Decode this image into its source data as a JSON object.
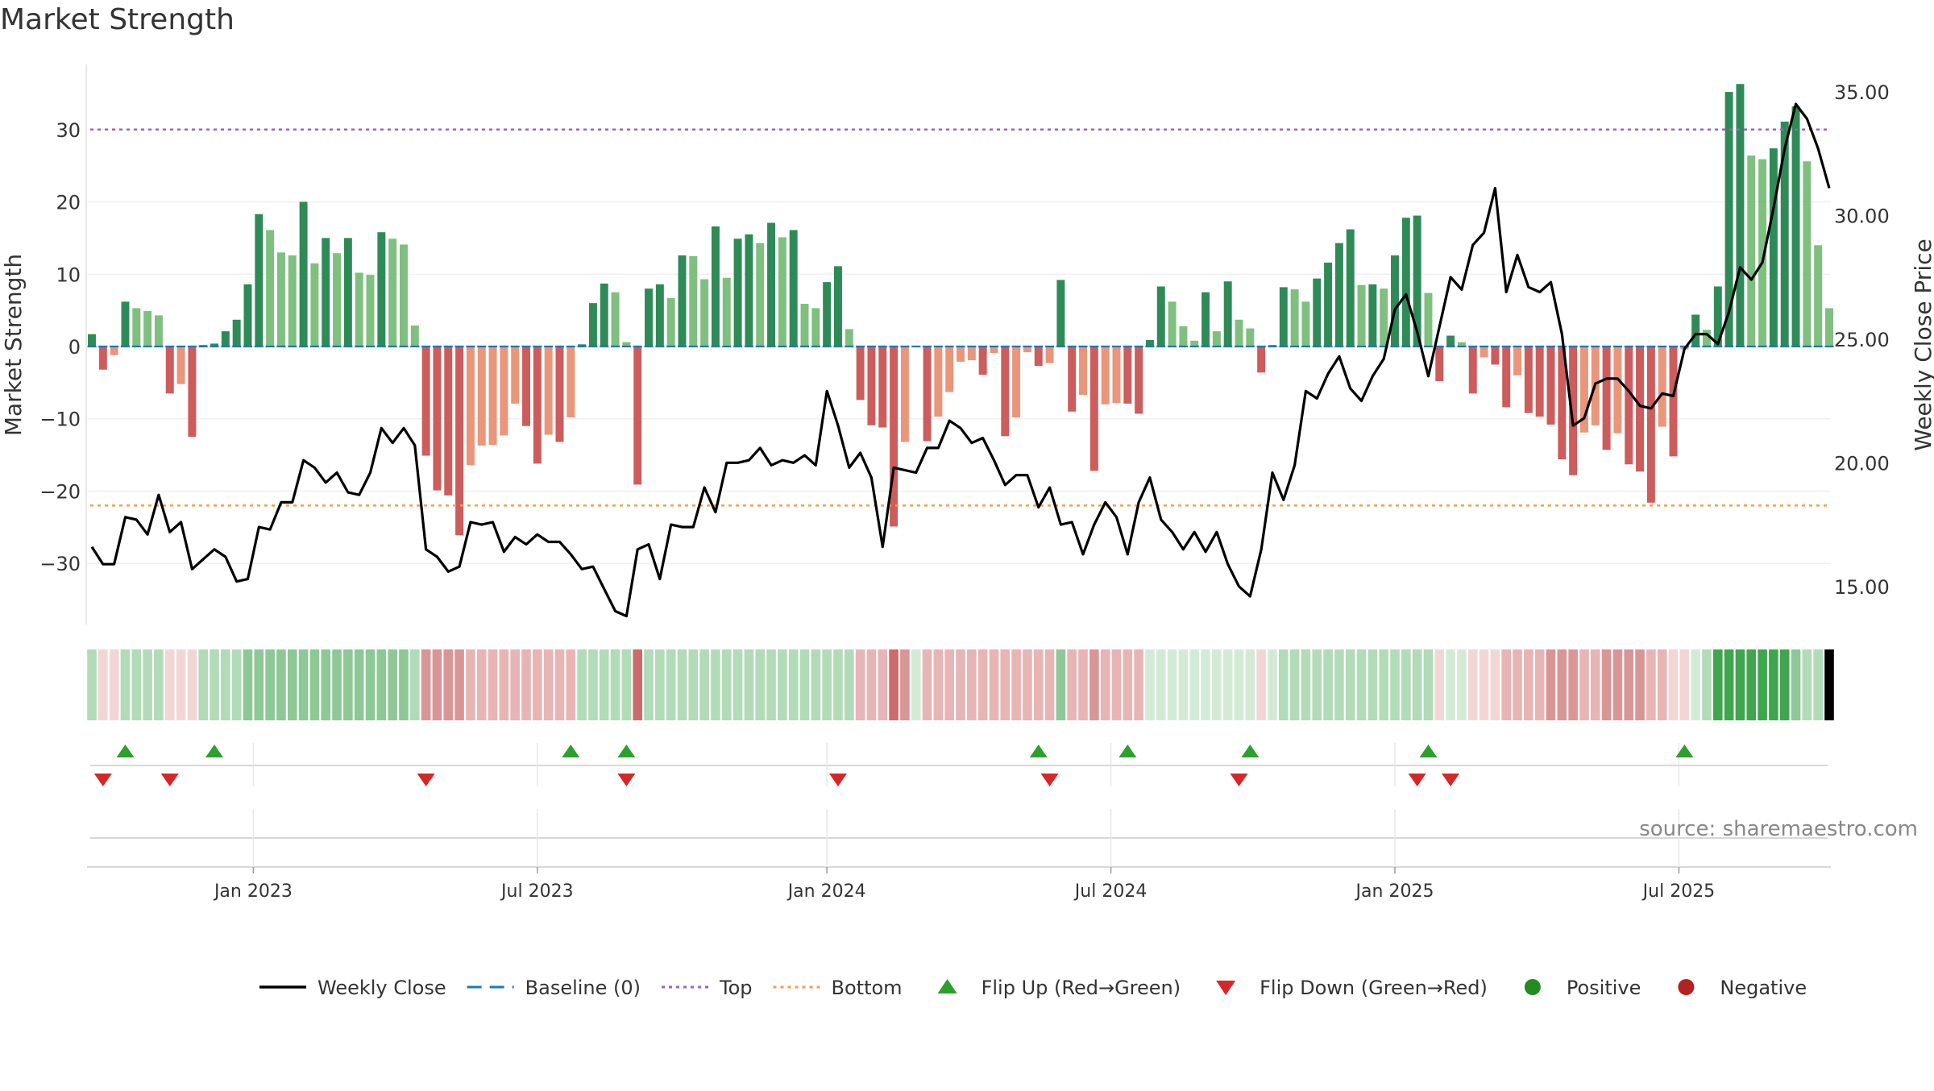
{
  "chart_data": {
    "type": "bar",
    "title": "Market Strength",
    "ylabel_left": "Market Strength",
    "ylabel_right": "Weekly Close Price",
    "source": "source: sharemaestro.com",
    "y_left_ticks": [
      30,
      20,
      10,
      0,
      -10,
      -20,
      -30
    ],
    "y_left_tick_labels": [
      "30",
      "20",
      "10",
      "0",
      "−10",
      "−20",
      "−30"
    ],
    "y_left_range": [
      -39,
      39
    ],
    "y_right_ticks": [
      35,
      30,
      25,
      20,
      15
    ],
    "y_right_tick_labels": [
      "35.00",
      "30.00",
      "25.00",
      "20.00",
      "15.00"
    ],
    "y_right_range": [
      13.3,
      36.1
    ],
    "x_tick_labels": [
      "Jan 2023",
      "Jul 2023",
      "Jan 2024",
      "Jul 2024",
      "Jan 2025",
      "Jul 2025"
    ],
    "x_tick_weeks": [
      14.5,
      40,
      66,
      91.5,
      117,
      142.5
    ],
    "thresholds": {
      "top": 30,
      "bottom": -22,
      "baseline": 0
    },
    "colors": {
      "strong_positive": "#2e8b57",
      "weak_positive": "#7fbf7f",
      "strong_negative": "#cd5c5c",
      "weak_negative": "#e9967a",
      "line": "#000000",
      "top_line": "#9467bd",
      "bottom_line": "#f0a050",
      "baseline": "#1f77b4",
      "flip_up": "#2ca02c",
      "flip_down": "#d62728",
      "positive_dot": "#228b22",
      "negative_dot": "#b22222"
    },
    "strength": [
      1.7,
      -3.2,
      -1.2,
      6.2,
      5.3,
      4.9,
      4.3,
      -6.5,
      -5.2,
      -12.5,
      0.2,
      0.4,
      2.1,
      3.7,
      8.6,
      18.3,
      16.1,
      13.0,
      12.6,
      20.0,
      11.5,
      15.0,
      12.9,
      15.0,
      10.2,
      9.9,
      15.8,
      14.9,
      14.1,
      2.9,
      -15.1,
      -19.9,
      -20.6,
      -26.1,
      -16.4,
      -13.7,
      -13.6,
      -12.3,
      -7.9,
      -11.0,
      -16.2,
      -12.2,
      -13.2,
      -9.8,
      0.3,
      6.0,
      8.7,
      7.5,
      0.6,
      -19.1,
      8.0,
      8.6,
      6.7,
      12.6,
      12.5,
      9.3,
      16.6,
      9.5,
      14.9,
      15.5,
      14.3,
      17.1,
      15.1,
      16.1,
      5.9,
      5.3,
      8.9,
      11.1,
      2.4,
      -7.4,
      -10.9,
      -11.2,
      -24.9,
      -13.2,
      0.1,
      -13.1,
      -9.7,
      -6.3,
      -2.1,
      -1.9,
      -3.9,
      -0.9,
      -12.4,
      -9.8,
      -0.8,
      -2.7,
      -2.3,
      9.2,
      -9.0,
      -6.7,
      -17.2,
      -8.0,
      -7.8,
      -7.9,
      -9.3,
      0.9,
      8.3,
      6.2,
      2.8,
      0.8,
      7.5,
      2.1,
      9.0,
      3.7,
      2.5,
      -3.6,
      0.2,
      8.2,
      7.9,
      6.2,
      9.4,
      11.6,
      14.3,
      16.2,
      8.5,
      8.6,
      8.0,
      12.6,
      17.8,
      18.1,
      7.4,
      -4.8,
      1.5,
      0.6,
      -6.5,
      -1.5,
      -2.5,
      -8.4,
      -4.0,
      -9.2,
      -9.7,
      -10.8,
      -15.6,
      -17.8,
      -11.9,
      -10.9,
      -14.3,
      -12.0,
      -16.3,
      -17.3,
      -21.6,
      -11.1,
      -15.2,
      -0.4,
      4.4,
      2.3,
      8.3,
      35.2,
      36.3,
      26.4,
      25.9,
      27.4,
      31.1,
      33.2,
      25.6,
      14.0,
      5.3
    ],
    "close": [
      16.6,
      15.9,
      15.9,
      17.8,
      17.7,
      17.1,
      18.7,
      17.2,
      17.6,
      15.7,
      16.1,
      16.5,
      16.2,
      15.2,
      15.3,
      17.4,
      17.3,
      18.4,
      18.4,
      20.1,
      19.8,
      19.2,
      19.6,
      18.8,
      18.7,
      19.6,
      21.4,
      20.8,
      21.4,
      20.7,
      16.5,
      16.2,
      15.6,
      15.8,
      17.6,
      17.5,
      17.6,
      16.4,
      17.0,
      16.7,
      17.1,
      16.8,
      16.8,
      16.3,
      15.7,
      15.8,
      14.9,
      14.0,
      13.8,
      16.5,
      16.7,
      15.3,
      17.5,
      17.4,
      17.4,
      19.0,
      18.0,
      20.0,
      20.0,
      20.1,
      20.6,
      19.9,
      20.1,
      20.0,
      20.3,
      19.9,
      22.9,
      21.5,
      19.8,
      20.4,
      19.4,
      16.6,
      19.8,
      19.7,
      19.6,
      20.6,
      20.6,
      21.7,
      21.4,
      20.8,
      21.0,
      20.1,
      19.1,
      19.5,
      19.5,
      18.2,
      19.0,
      17.5,
      17.6,
      16.3,
      17.5,
      18.4,
      17.8,
      16.3,
      18.4,
      19.4,
      17.7,
      17.2,
      16.5,
      17.2,
      16.4,
      17.2,
      15.9,
      15.0,
      14.6,
      16.5,
      19.6,
      18.5,
      19.9,
      22.9,
      22.6,
      23.6,
      24.3,
      23.0,
      22.5,
      23.5,
      24.2,
      26.2,
      26.8,
      25.3,
      23.5,
      25.5,
      27.5,
      27.0,
      28.8,
      29.3,
      31.1,
      26.9,
      28.4,
      27.1,
      26.9,
      27.3,
      25.2,
      21.5,
      21.8,
      23.2,
      23.4,
      23.4,
      22.9,
      22.3,
      22.2,
      22.8,
      22.7,
      24.6,
      25.2,
      25.2,
      24.8,
      26.1,
      27.9,
      27.4,
      28.1,
      30.3,
      32.7,
      34.5,
      33.9,
      32.7,
      31.1
    ],
    "hist_intensity": [
      1,
      0,
      0,
      1,
      1,
      1,
      1,
      0,
      0,
      0,
      1,
      1,
      1,
      1,
      2,
      2,
      2,
      2,
      2,
      2,
      2,
      2,
      2,
      2,
      2,
      2,
      2,
      2,
      2,
      1,
      2,
      2,
      2,
      2,
      1,
      1,
      1,
      1,
      1,
      1,
      1,
      1,
      1,
      1,
      1,
      1,
      1,
      1,
      1,
      3,
      1,
      1,
      1,
      1,
      1,
      1,
      1,
      1,
      1,
      1,
      1,
      1,
      1,
      1,
      1,
      1,
      1,
      1,
      1,
      1,
      1,
      1,
      3,
      2,
      0,
      1,
      1,
      1,
      1,
      1,
      1,
      1,
      1,
      1,
      1,
      1,
      1,
      2,
      1,
      1,
      2,
      1,
      1,
      1,
      1,
      0,
      0,
      0,
      0,
      0,
      0,
      0,
      0,
      0,
      0,
      0,
      0,
      1,
      1,
      1,
      1,
      1,
      1,
      1,
      1,
      1,
      1,
      1,
      1,
      1,
      1,
      0,
      0,
      0,
      0,
      0,
      0,
      1,
      1,
      1,
      1,
      2,
      2,
      2,
      1,
      1,
      2,
      2,
      2,
      2,
      1,
      1,
      0,
      0,
      0,
      1,
      3,
      3,
      3,
      3,
      3,
      3,
      3,
      2,
      1,
      1
    ],
    "flip_up_weeks": [
      3,
      11,
      43,
      48,
      85,
      93,
      104,
      120,
      143
    ],
    "flip_down_weeks": [
      1,
      7,
      30,
      48,
      67,
      86,
      103,
      119,
      122
    ],
    "legend": [
      {
        "kind": "line",
        "label": "Weekly Close"
      },
      {
        "kind": "dash",
        "label": "Baseline (0)"
      },
      {
        "kind": "dot-purple",
        "label": "Top"
      },
      {
        "kind": "dot-orange",
        "label": "Bottom"
      },
      {
        "kind": "tri-up",
        "label": "Flip Up (Red→Green)"
      },
      {
        "kind": "tri-down",
        "label": "Flip Down (Green→Red)"
      },
      {
        "kind": "circle-green",
        "label": "Positive"
      },
      {
        "kind": "circle-red",
        "label": "Negative"
      }
    ]
  }
}
